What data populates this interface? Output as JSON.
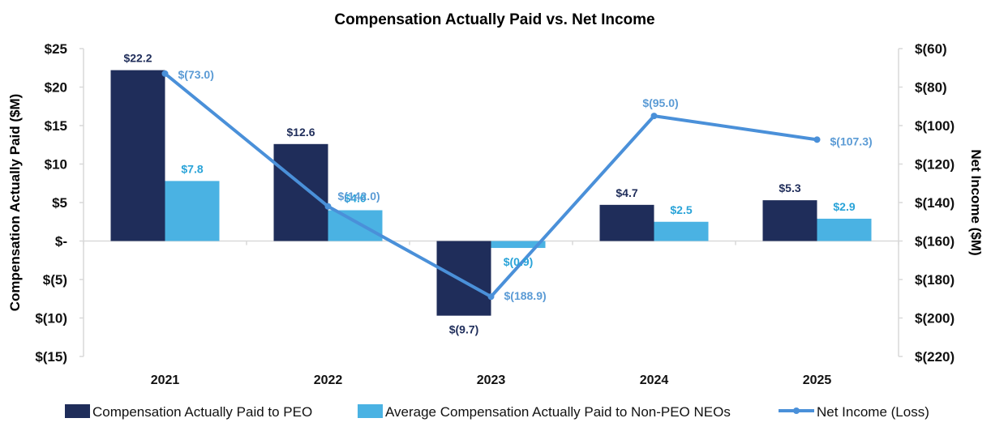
{
  "chart_data": {
    "type": "bar",
    "title": "Compensation Actually Paid vs. Net Income",
    "categories": [
      "2021",
      "2022",
      "2023",
      "2024",
      "2025"
    ],
    "y_left": {
      "label": "Compensation Actually Paid ($M)",
      "range": [
        -15,
        25
      ],
      "tick_values": [
        25,
        20,
        15,
        10,
        5,
        0,
        -5,
        -10,
        -15
      ],
      "tick_labels": [
        "$25",
        "$20",
        "$15",
        "$10",
        "$5",
        "$-",
        "$(5)",
        "$(10)",
        "$(15)"
      ]
    },
    "y_right": {
      "label": "Net Income ($M)",
      "range": [
        -220,
        -60
      ],
      "tick_values": [
        -60,
        -80,
        -100,
        -120,
        -140,
        -160,
        -180,
        -200,
        -220
      ],
      "tick_labels": [
        "$(60)",
        "$(80)",
        "$(100)",
        "$(120)",
        "$(140)",
        "$(160)",
        "$(180)",
        "$(200)",
        "$(220)"
      ]
    },
    "series": [
      {
        "name": "Compensation Actually Paid to PEO",
        "type": "bar",
        "axis": "left",
        "color": "#1f2d5a",
        "values": [
          22.2,
          12.6,
          -9.7,
          4.7,
          5.3
        ],
        "labels": [
          "$22.2",
          "$12.6",
          "$(9.7)",
          "$4.7",
          "$5.3"
        ],
        "label_color": "#1f2d5a"
      },
      {
        "name": "Average Compensation Actually Paid to Non-PEO NEOs",
        "type": "bar",
        "axis": "left",
        "color": "#4ab2e3",
        "values": [
          7.8,
          4.0,
          -0.9,
          2.5,
          2.9
        ],
        "labels": [
          "$7.8",
          "$4.0",
          "$(0.9)",
          "$2.5",
          "$2.9"
        ],
        "label_color": "#29a3d8"
      },
      {
        "name": "Net Income (Loss)",
        "type": "line",
        "axis": "right",
        "color": "#4a90d9",
        "values": [
          -73.0,
          -142.0,
          -188.9,
          -95.0,
          -107.3
        ],
        "labels": [
          "$(73.0)",
          "$(142.0)",
          "$(188.9)",
          "$(95.0)",
          "$(107.3)"
        ],
        "label_color": "#5b9bd5"
      }
    ],
    "legend": {
      "position": "bottom",
      "items": [
        "Compensation Actually Paid to PEO",
        "Average Compensation Actually Paid to Non-PEO NEOs",
        "Net Income (Loss)"
      ]
    }
  }
}
